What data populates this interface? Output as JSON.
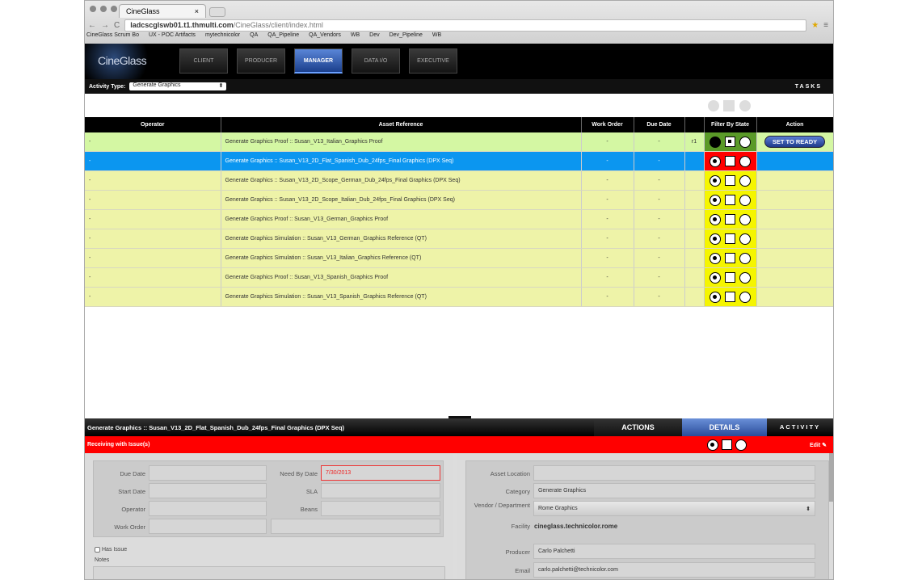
{
  "browser": {
    "tab_title": "CineGlass",
    "url_host": "ladcscglswb01.t1.thmulti.com",
    "url_path": "/CineGlass/client/index.html",
    "bookmarks": [
      "CineGlass Scrum Bo",
      "UX - POC Artifacts",
      "mytechnicolor",
      "QA",
      "QA_Pipeline",
      "QA_Vendors",
      "WB",
      "Dev",
      "Dev_Pipeline",
      "WB"
    ]
  },
  "app": {
    "logo": "CineGlass",
    "nav": [
      "CLIENT",
      "PRODUCER",
      "MANAGER",
      "DATA I/O",
      "EXECUTIVE"
    ],
    "active_nav": "MANAGER",
    "activity_type_label": "Activity Type:",
    "activity_type_value": "Generate Graphics",
    "tasks_label": "TASKS"
  },
  "table": {
    "headers": [
      "Operator",
      "Asset Reference",
      "Work Order",
      "Due Date",
      "",
      "Filter By State",
      "Action"
    ],
    "rows": [
      {
        "operator": "-",
        "asset": "Generate Graphics Proof :: Susan_V13_Italian_Graphics Proof",
        "work_order": "-",
        "due_date": "-",
        "rev": "r1",
        "state": "green",
        "action": "SET TO READY"
      },
      {
        "operator": "-",
        "asset": "Generate Graphics :: Susan_V13_2D_Flat_Spanish_Dub_24fps_Final Graphics (DPX Seq)",
        "work_order": "-",
        "due_date": "-",
        "rev": "",
        "state": "red",
        "action": ""
      },
      {
        "operator": "-",
        "asset": "Generate Graphics :: Susan_V13_2D_Scope_German_Dub_24fps_Final Graphics (DPX Seq)",
        "work_order": "-",
        "due_date": "-",
        "rev": "",
        "state": "yellow",
        "action": ""
      },
      {
        "operator": "-",
        "asset": "Generate Graphics :: Susan_V13_2D_Scope_Italian_Dub_24fps_Final Graphics (DPX Seq)",
        "work_order": "-",
        "due_date": "-",
        "rev": "",
        "state": "yellow",
        "action": ""
      },
      {
        "operator": "-",
        "asset": "Generate Graphics Proof :: Susan_V13_German_Graphics Proof",
        "work_order": "-",
        "due_date": "-",
        "rev": "",
        "state": "yellow",
        "action": ""
      },
      {
        "operator": "-",
        "asset": "Generate Graphics Simulation :: Susan_V13_German_Graphics Reference (QT)",
        "work_order": "-",
        "due_date": "-",
        "rev": "",
        "state": "yellow",
        "action": ""
      },
      {
        "operator": "-",
        "asset": "Generate Graphics Simulation :: Susan_V13_Italian_Graphics Reference (QT)",
        "work_order": "-",
        "due_date": "-",
        "rev": "",
        "state": "yellow",
        "action": ""
      },
      {
        "operator": "-",
        "asset": "Generate Graphics Proof :: Susan_V13_Spanish_Graphics Proof",
        "work_order": "-",
        "due_date": "-",
        "rev": "",
        "state": "yellow",
        "action": ""
      },
      {
        "operator": "-",
        "asset": "Generate Graphics Simulation :: Susan_V13_Spanish_Graphics Reference (QT)",
        "work_order": "-",
        "due_date": "-",
        "rev": "",
        "state": "yellow",
        "action": ""
      }
    ]
  },
  "details": {
    "title": "Generate Graphics :: Susan_V13_2D_Flat_Spanish_Dub_24fps_Final Graphics (DPX Seq)",
    "tabs": [
      "ACTIONS",
      "DETAILS",
      "ACTIVITY"
    ],
    "active_tab": "DETAILS",
    "status": "Receiving with Issue(s)",
    "edit": "Edit",
    "left": {
      "due_date": "Due Date",
      "start_date": "Start Date",
      "operator": "Operator",
      "work_order": "Work Order",
      "need_by_date": "Need By Date",
      "need_by_value": "7/30/2013",
      "sla": "SLA",
      "beans": "Beans",
      "has_issue": "Has Issue",
      "notes": "Notes"
    },
    "right": {
      "asset_location": "Asset Location",
      "category": "Category",
      "category_value": "Generate Graphics",
      "vendor": "Vendor / Department",
      "vendor_value": "Rome Graphics",
      "facility": "Facility",
      "facility_value": "cineglass.technicolor.rome",
      "producer": "Producer",
      "producer_value": "Carlo Palchetti",
      "email": "Email",
      "email_value": "carlo.palchetti@technicolor.com"
    }
  },
  "colors": {
    "green_row": "#d4f7a3",
    "selected_row": "#0b96f0",
    "yellow_row": "#eef3a8",
    "state_green": "#5a9a28",
    "state_red": "#ff0000",
    "state_yellow": "#f5f500"
  }
}
